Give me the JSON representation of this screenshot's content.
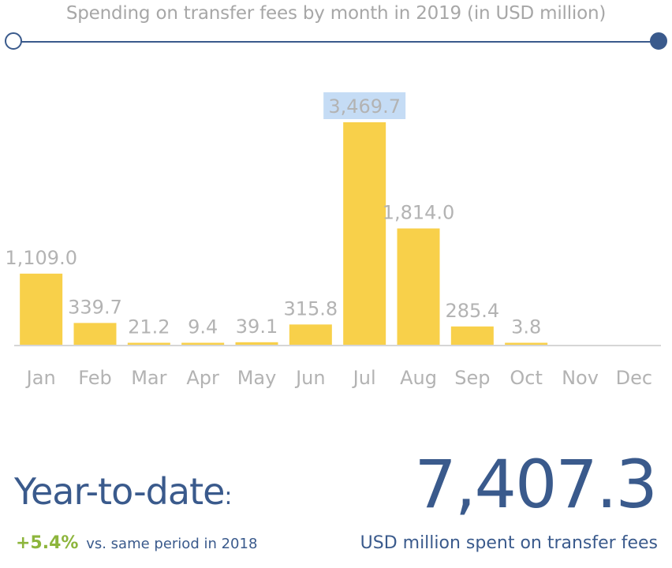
{
  "chart_data": {
    "type": "bar",
    "title": "Spending on transfer fees by month in 2019 (in USD million)",
    "categories": [
      "Jan",
      "Feb",
      "Mar",
      "Apr",
      "May",
      "Jun",
      "Jul",
      "Aug",
      "Sep",
      "Oct",
      "Nov",
      "Dec"
    ],
    "values": [
      1109.0,
      339.7,
      21.2,
      9.4,
      39.1,
      315.8,
      3469.7,
      1814.0,
      285.4,
      3.8,
      null,
      null
    ],
    "value_labels": [
      "1,109.0",
      "339.7",
      "21.2",
      "9.4",
      "39.1",
      "315.8",
      "3,469.7",
      "1,814.0",
      "285.4",
      "3.8",
      "",
      ""
    ],
    "highlighted_category": "Jul",
    "ylim": [
      0,
      3469.7
    ],
    "grid": false,
    "colors": {
      "bar": "#f8d04a",
      "highlight_label_bg": "#c5dcf5",
      "value_label": "#b3b3b3",
      "axis": "#d6d6d6"
    }
  },
  "summary": {
    "ytd_label": "Year-to-date",
    "ytd_colon": ":",
    "change_value": "+5.4%",
    "change_text": "vs. same period in 2018",
    "total_value": "7,407.3",
    "total_caption": "USD million spent on transfer fees"
  },
  "colors": {
    "primary": "#3a5a8c",
    "positive": "#8db53c",
    "title": "#a7a7a7"
  }
}
